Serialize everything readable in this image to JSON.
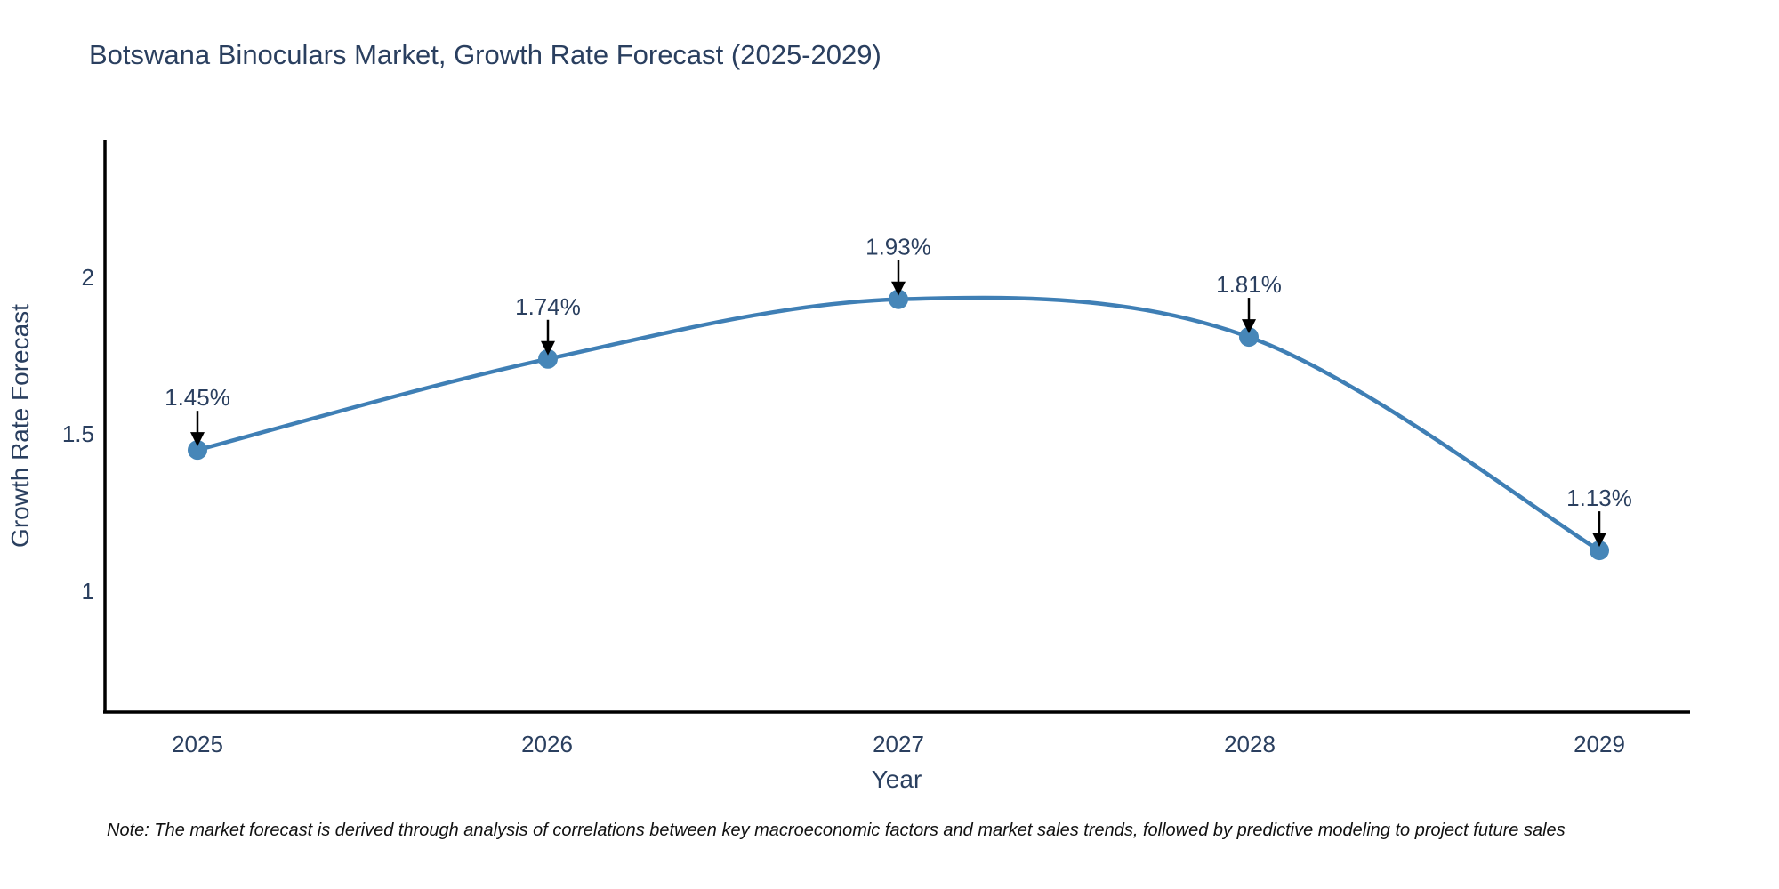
{
  "title": "Botswana Binoculars Market, Growth Rate Forecast (2025-2029)",
  "note": "Note: The market forecast is derived through analysis of correlations between key macroeconomic factors and market sales trends, followed by predictive modeling to project future sales",
  "chart_data": {
    "type": "line",
    "title": "Botswana Binoculars Market, Growth Rate Forecast (2025-2029)",
    "xlabel": "Year",
    "ylabel": "Growth Rate Forecast",
    "x": [
      2025,
      2026,
      2027,
      2028,
      2029
    ],
    "values": [
      1.45,
      1.74,
      1.93,
      1.81,
      1.13
    ],
    "point_labels": [
      "1.45%",
      "1.74%",
      "1.93%",
      "1.81%",
      "1.13%"
    ],
    "y_tick_labels_top_to_bottom": [
      "2",
      "1.5",
      "1"
    ],
    "y_tick_values": [
      2,
      1.5,
      1
    ],
    "xlim": [
      2024.73,
      2029.26
    ],
    "ylim": [
      0.61,
      2.44
    ],
    "line_shape": "spline",
    "grid": false,
    "legend": "none",
    "colors": {
      "line": "#3f7fb5",
      "marker": "#4686b8",
      "arrow": "#000000",
      "axis": "#000000",
      "text": "#2a3f5f"
    }
  }
}
